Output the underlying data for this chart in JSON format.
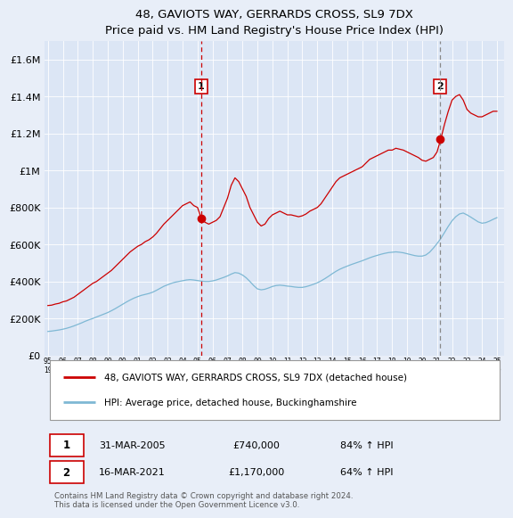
{
  "title1": "48, GAVIOTS WAY, GERRARDS CROSS, SL9 7DX",
  "title2": "Price paid vs. HM Land Registry's House Price Index (HPI)",
  "ylim": [
    0,
    1700000
  ],
  "yticks": [
    0,
    200000,
    400000,
    600000,
    800000,
    1000000,
    1200000,
    1400000,
    1600000
  ],
  "ytick_labels": [
    "£0",
    "£200K",
    "£400K",
    "£600K",
    "£800K",
    "£1M",
    "£1.2M",
    "£1.4M",
    "£1.6M"
  ],
  "background_color": "#e8eef8",
  "plot_bg_color": "#dce6f5",
  "grid_color": "#ffffff",
  "red_color": "#cc0000",
  "blue_color": "#7eb8d4",
  "sale1_x": 2005.25,
  "sale1_price": 740000,
  "sale2_x": 2021.2,
  "sale2_price": 1170000,
  "legend_entry1": "48, GAVIOTS WAY, GERRARDS CROSS, SL9 7DX (detached house)",
  "legend_entry2": "HPI: Average price, detached house, Buckinghamshire",
  "table_row1": [
    "1",
    "31-MAR-2005",
    "£740,000",
    "84% ↑ HPI"
  ],
  "table_row2": [
    "2",
    "16-MAR-2021",
    "£1,170,000",
    "64% ↑ HPI"
  ],
  "footnote": "Contains HM Land Registry data © Crown copyright and database right 2024.\nThis data is licensed under the Open Government Licence v3.0.",
  "red_x": [
    1995.0,
    1995.25,
    1995.5,
    1995.75,
    1996.0,
    1996.25,
    1996.5,
    1996.75,
    1997.0,
    1997.25,
    1997.5,
    1997.75,
    1998.0,
    1998.25,
    1998.5,
    1998.75,
    1999.0,
    1999.25,
    1999.5,
    1999.75,
    2000.0,
    2000.25,
    2000.5,
    2000.75,
    2001.0,
    2001.25,
    2001.5,
    2001.75,
    2002.0,
    2002.25,
    2002.5,
    2002.75,
    2003.0,
    2003.25,
    2003.5,
    2003.75,
    2004.0,
    2004.25,
    2004.5,
    2004.75,
    2005.0,
    2005.25,
    2005.5,
    2005.75,
    2006.0,
    2006.25,
    2006.5,
    2006.75,
    2007.0,
    2007.25,
    2007.5,
    2007.75,
    2008.0,
    2008.25,
    2008.5,
    2008.75,
    2009.0,
    2009.25,
    2009.5,
    2009.75,
    2010.0,
    2010.25,
    2010.5,
    2010.75,
    2011.0,
    2011.25,
    2011.5,
    2011.75,
    2012.0,
    2012.25,
    2012.5,
    2012.75,
    2013.0,
    2013.25,
    2013.5,
    2013.75,
    2014.0,
    2014.25,
    2014.5,
    2014.75,
    2015.0,
    2015.25,
    2015.5,
    2015.75,
    2016.0,
    2016.25,
    2016.5,
    2016.75,
    2017.0,
    2017.25,
    2017.5,
    2017.75,
    2018.0,
    2018.25,
    2018.5,
    2018.75,
    2019.0,
    2019.25,
    2019.5,
    2019.75,
    2020.0,
    2020.25,
    2020.5,
    2020.75,
    2021.0,
    2021.25,
    2021.5,
    2021.75,
    2022.0,
    2022.25,
    2022.5,
    2022.75,
    2023.0,
    2023.25,
    2023.5,
    2023.75,
    2024.0,
    2024.25,
    2024.5,
    2024.75,
    2025.0
  ],
  "red_y": [
    270000,
    272000,
    278000,
    282000,
    290000,
    295000,
    305000,
    315000,
    330000,
    345000,
    360000,
    375000,
    390000,
    400000,
    415000,
    430000,
    445000,
    460000,
    480000,
    500000,
    520000,
    540000,
    560000,
    575000,
    590000,
    600000,
    615000,
    625000,
    640000,
    660000,
    685000,
    710000,
    730000,
    750000,
    770000,
    790000,
    810000,
    820000,
    830000,
    810000,
    800000,
    740000,
    720000,
    710000,
    720000,
    730000,
    750000,
    800000,
    850000,
    920000,
    960000,
    940000,
    900000,
    860000,
    800000,
    760000,
    720000,
    700000,
    710000,
    740000,
    760000,
    770000,
    780000,
    770000,
    760000,
    760000,
    755000,
    750000,
    755000,
    765000,
    780000,
    790000,
    800000,
    820000,
    850000,
    880000,
    910000,
    940000,
    960000,
    970000,
    980000,
    990000,
    1000000,
    1010000,
    1020000,
    1040000,
    1060000,
    1070000,
    1080000,
    1090000,
    1100000,
    1110000,
    1110000,
    1120000,
    1115000,
    1110000,
    1100000,
    1090000,
    1080000,
    1070000,
    1055000,
    1050000,
    1060000,
    1070000,
    1100000,
    1170000,
    1250000,
    1320000,
    1380000,
    1400000,
    1410000,
    1380000,
    1330000,
    1310000,
    1300000,
    1290000,
    1290000,
    1300000,
    1310000,
    1320000,
    1320000
  ],
  "blue_x": [
    1995.0,
    1995.25,
    1995.5,
    1995.75,
    1996.0,
    1996.25,
    1996.5,
    1996.75,
    1997.0,
    1997.25,
    1997.5,
    1997.75,
    1998.0,
    1998.25,
    1998.5,
    1998.75,
    1999.0,
    1999.25,
    1999.5,
    1999.75,
    2000.0,
    2000.25,
    2000.5,
    2000.75,
    2001.0,
    2001.25,
    2001.5,
    2001.75,
    2002.0,
    2002.25,
    2002.5,
    2002.75,
    2003.0,
    2003.25,
    2003.5,
    2003.75,
    2004.0,
    2004.25,
    2004.5,
    2004.75,
    2005.0,
    2005.25,
    2005.5,
    2005.75,
    2006.0,
    2006.25,
    2006.5,
    2006.75,
    2007.0,
    2007.25,
    2007.5,
    2007.75,
    2008.0,
    2008.25,
    2008.5,
    2008.75,
    2009.0,
    2009.25,
    2009.5,
    2009.75,
    2010.0,
    2010.25,
    2010.5,
    2010.75,
    2011.0,
    2011.25,
    2011.5,
    2011.75,
    2012.0,
    2012.25,
    2012.5,
    2012.75,
    2013.0,
    2013.25,
    2013.5,
    2013.75,
    2014.0,
    2014.25,
    2014.5,
    2014.75,
    2015.0,
    2015.25,
    2015.5,
    2015.75,
    2016.0,
    2016.25,
    2016.5,
    2016.75,
    2017.0,
    2017.25,
    2017.5,
    2017.75,
    2018.0,
    2018.25,
    2018.5,
    2018.75,
    2019.0,
    2019.25,
    2019.5,
    2019.75,
    2020.0,
    2020.25,
    2020.5,
    2020.75,
    2021.0,
    2021.25,
    2021.5,
    2021.75,
    2022.0,
    2022.25,
    2022.5,
    2022.75,
    2023.0,
    2023.25,
    2023.5,
    2023.75,
    2024.0,
    2024.25,
    2024.5,
    2024.75,
    2025.0
  ],
  "blue_y": [
    130000,
    132000,
    135000,
    138000,
    142000,
    147000,
    153000,
    160000,
    168000,
    176000,
    185000,
    193000,
    200000,
    208000,
    216000,
    224000,
    232000,
    242000,
    253000,
    265000,
    277000,
    289000,
    300000,
    310000,
    318000,
    325000,
    330000,
    335000,
    342000,
    352000,
    363000,
    374000,
    382000,
    390000,
    396000,
    400000,
    404000,
    408000,
    410000,
    408000,
    405000,
    402000,
    400000,
    400000,
    403000,
    408000,
    415000,
    422000,
    430000,
    440000,
    448000,
    445000,
    435000,
    420000,
    400000,
    378000,
    360000,
    355000,
    358000,
    365000,
    373000,
    378000,
    380000,
    378000,
    375000,
    373000,
    370000,
    368000,
    368000,
    372000,
    378000,
    385000,
    393000,
    403000,
    415000,
    428000,
    442000,
    455000,
    466000,
    475000,
    483000,
    491000,
    498000,
    505000,
    512000,
    520000,
    528000,
    535000,
    541000,
    547000,
    552000,
    556000,
    558000,
    560000,
    558000,
    555000,
    550000,
    545000,
    540000,
    537000,
    537000,
    543000,
    558000,
    580000,
    605000,
    632000,
    665000,
    698000,
    728000,
    750000,
    765000,
    770000,
    760000,
    748000,
    735000,
    722000,
    715000,
    718000,
    726000,
    736000,
    745000
  ]
}
